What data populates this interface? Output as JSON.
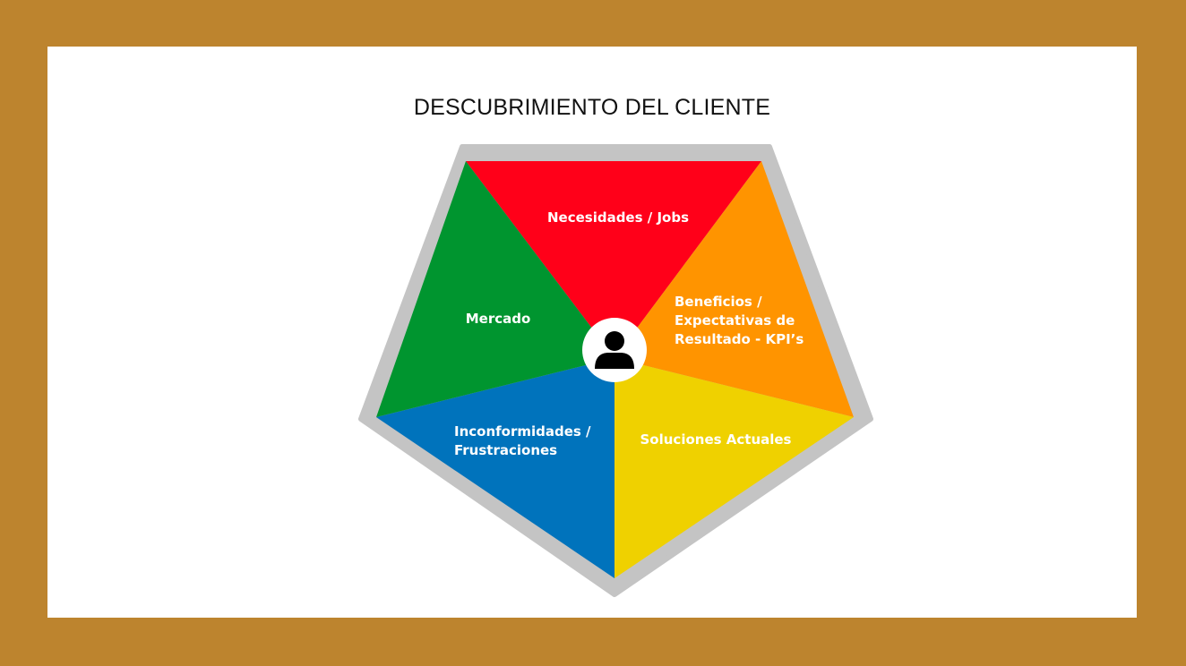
{
  "title": "DESCUBRIMIENTO DEL CLIENTE",
  "segments": {
    "top": {
      "lines": [
        "Necesidades / Jobs"
      ],
      "color": "#ff0019"
    },
    "right": {
      "lines": [
        "Beneficios /",
        "Expectativas de",
        "Resultado - KPI’s"
      ],
      "color": "#ff9400"
    },
    "bottom_right": {
      "lines": [
        "Soluciones Actuales"
      ],
      "color": "#efd100"
    },
    "bottom_left": {
      "lines": [
        "Inconformidades /",
        "Frustraciones"
      ],
      "color": "#0073bc"
    },
    "left": {
      "lines": [
        "Mercado"
      ],
      "color": "#00952f"
    }
  },
  "center_icon": "person-icon",
  "border_color": "#bd842e",
  "outline_color": "#c4c4c4"
}
